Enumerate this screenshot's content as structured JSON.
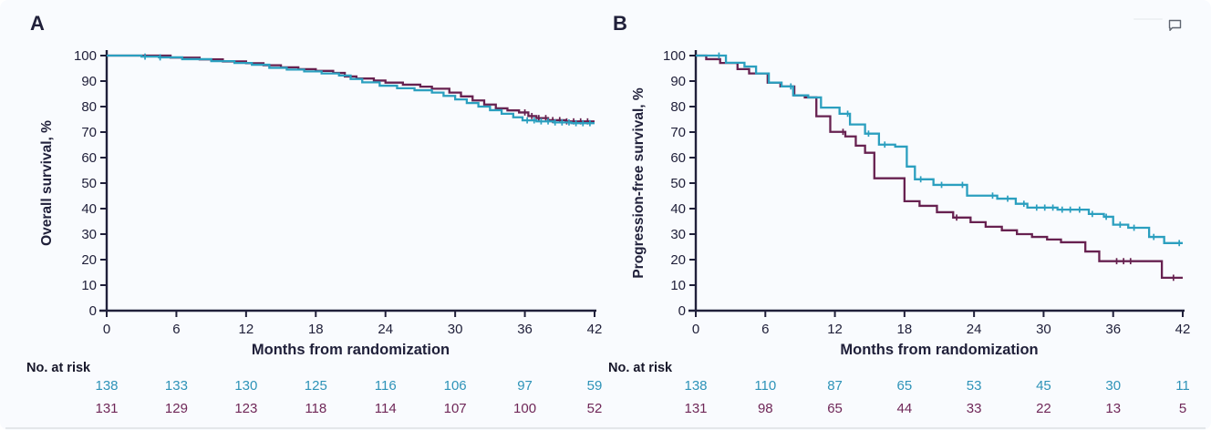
{
  "page": {
    "background_color": "#f9fbfe",
    "axis_text_color": "#20203a",
    "bottom_edge_color": "#e4e7ea"
  },
  "toolbar": {
    "comment_icon": "comment-bubble"
  },
  "chart_data": [
    {
      "type": "line",
      "subtype": "kaplan-meier-step",
      "panel_label": "A",
      "ylabel": "Overall survival, %",
      "xlabel": "Months from randomization",
      "xlim": [
        0,
        42
      ],
      "ylim": [
        0,
        100
      ],
      "xticks": [
        0,
        6,
        12,
        18,
        24,
        30,
        36,
        42
      ],
      "yticks": [
        0,
        10,
        20,
        30,
        40,
        50,
        60,
        70,
        80,
        90,
        100
      ],
      "grid": false,
      "legend_position": "none",
      "series": [
        {
          "name": "maroon-arm",
          "color": "#672150",
          "points": [
            [
              0,
              100
            ],
            [
              5.5,
              99.2
            ],
            [
              8,
              98.5
            ],
            [
              10,
              97.7
            ],
            [
              12,
              97
            ],
            [
              13.5,
              96.2
            ],
            [
              15,
              95.4
            ],
            [
              16.5,
              94.7
            ],
            [
              18,
              94
            ],
            [
              19.5,
              93.2
            ],
            [
              20.5,
              91.8
            ],
            [
              21.5,
              91
            ],
            [
              23,
              90.2
            ],
            [
              24,
              89.4
            ],
            [
              25.5,
              88.6
            ],
            [
              27,
              87.8
            ],
            [
              28,
              87
            ],
            [
              29.5,
              85.5
            ],
            [
              30.5,
              84
            ],
            [
              31.5,
              82.4
            ],
            [
              32.5,
              80.8
            ],
            [
              33.5,
              79.3
            ],
            [
              34.5,
              78.5
            ],
            [
              35.5,
              77.7
            ],
            [
              36.3,
              76.3
            ],
            [
              37,
              75.5
            ],
            [
              38,
              74.7
            ],
            [
              39.5,
              74.2
            ],
            [
              42,
              74.2
            ]
          ],
          "censor_months": [
            36,
            36.6,
            37.2,
            37.8,
            38.4,
            39,
            39.6,
            40.2,
            40.8,
            41.4
          ]
        },
        {
          "name": "teal-arm",
          "color": "#2b9fbf",
          "points": [
            [
              0,
              100
            ],
            [
              3,
              99.6
            ],
            [
              4.5,
              99.3
            ],
            [
              6.5,
              98.6
            ],
            [
              9,
              97.8
            ],
            [
              11,
              97.1
            ],
            [
              12.5,
              96.4
            ],
            [
              14,
              95.2
            ],
            [
              15.5,
              94.5
            ],
            [
              17,
              93.8
            ],
            [
              18.5,
              93
            ],
            [
              20,
              92.2
            ],
            [
              21,
              90.8
            ],
            [
              22,
              89.5
            ],
            [
              23.5,
              88.2
            ],
            [
              25,
              87.2
            ],
            [
              26.5,
              86.4
            ],
            [
              28,
              85.5
            ],
            [
              29,
              84.2
            ],
            [
              30,
              82.8
            ],
            [
              31,
              81.4
            ],
            [
              32,
              80
            ],
            [
              33,
              78.6
            ],
            [
              34,
              77.2
            ],
            [
              35,
              75.8
            ],
            [
              35.8,
              74.6
            ],
            [
              37,
              74.2
            ],
            [
              38.5,
              73.8
            ],
            [
              40,
              73.5
            ],
            [
              42,
              73.5
            ]
          ],
          "censor_months": [
            3.3,
            4.6,
            36.2,
            36.8,
            37.4,
            38,
            38.6,
            39.2,
            39.8,
            40.4,
            41,
            41.6
          ]
        }
      ],
      "risk_table": {
        "label": "No. at risk",
        "rows": [
          {
            "name": "teal-arm",
            "color": "#2e93b8",
            "values": [
              138,
              133,
              130,
              125,
              116,
              106,
              97,
              59
            ]
          },
          {
            "name": "maroon-arm",
            "color": "#6f2758",
            "values": [
              131,
              129,
              123,
              118,
              114,
              107,
              100,
              52
            ]
          }
        ]
      }
    },
    {
      "type": "line",
      "subtype": "kaplan-meier-step",
      "panel_label": "B",
      "ylabel": "Progression-free survival, %",
      "xlabel": "Months from randomization",
      "xlim": [
        0,
        42
      ],
      "ylim": [
        0,
        100
      ],
      "xticks": [
        0,
        6,
        12,
        18,
        24,
        30,
        36,
        42
      ],
      "yticks": [
        0,
        10,
        20,
        30,
        40,
        50,
        60,
        70,
        80,
        90,
        100
      ],
      "grid": false,
      "legend_position": "none",
      "series": [
        {
          "name": "maroon-arm",
          "color": "#672150",
          "points": [
            [
              0,
              100
            ],
            [
              0.9,
              98.6
            ],
            [
              2.1,
              97.1
            ],
            [
              3.6,
              94.7
            ],
            [
              4.6,
              93
            ],
            [
              6.2,
              89.4
            ],
            [
              7.3,
              87.9
            ],
            [
              8.5,
              84.4
            ],
            [
              9.4,
              83.6
            ],
            [
              10.4,
              76.2
            ],
            [
              11.6,
              70.1
            ],
            [
              12.9,
              68.3
            ],
            [
              13.8,
              64.7
            ],
            [
              14.6,
              61.9
            ],
            [
              15.4,
              51.9
            ],
            [
              18,
              42.9
            ],
            [
              19.3,
              41.1
            ],
            [
              20.8,
              38.6
            ],
            [
              22.2,
              36.5
            ],
            [
              23.7,
              34.7
            ],
            [
              25,
              32.9
            ],
            [
              26.4,
              31.5
            ],
            [
              27.7,
              30
            ],
            [
              29,
              28.9
            ],
            [
              30.3,
              27.9
            ],
            [
              31.5,
              26.8
            ],
            [
              33.6,
              23.2
            ],
            [
              34.8,
              19.4
            ],
            [
              40.2,
              12.9
            ],
            [
              42,
              12.9
            ]
          ],
          "censor_months": [
            12.7,
            22.5,
            36.3,
            36.9,
            37.5,
            41.2
          ]
        },
        {
          "name": "teal-arm",
          "color": "#2b9fbf",
          "points": [
            [
              0,
              100
            ],
            [
              2.6,
              97.2
            ],
            [
              4.2,
              95.7
            ],
            [
              5.2,
              93
            ],
            [
              6.3,
              89.4
            ],
            [
              7.4,
              87.9
            ],
            [
              8.4,
              84.4
            ],
            [
              9.7,
              83.6
            ],
            [
              10.8,
              79.6
            ],
            [
              12.4,
              77.2
            ],
            [
              13.3,
              73
            ],
            [
              14.6,
              69.4
            ],
            [
              15.8,
              65.1
            ],
            [
              17.2,
              64.3
            ],
            [
              18.2,
              56.5
            ],
            [
              18.9,
              51.5
            ],
            [
              20.5,
              49.3
            ],
            [
              23.4,
              45.1
            ],
            [
              26,
              43.9
            ],
            [
              27.6,
              41.9
            ],
            [
              28.6,
              40.4
            ],
            [
              31.2,
              39.6
            ],
            [
              33.9,
              37.9
            ],
            [
              35.2,
              36.8
            ],
            [
              36,
              33.7
            ],
            [
              37.3,
              32.5
            ],
            [
              39.1,
              28.9
            ],
            [
              40.4,
              26.5
            ],
            [
              42,
              26.5
            ]
          ],
          "censor_months": [
            2,
            8.2,
            13.1,
            14.9,
            16.3,
            19.4,
            21.2,
            23,
            25.6,
            26.9,
            28.3,
            29.4,
            30.1,
            30.8,
            31.6,
            32.3,
            33.1,
            34.2,
            35.4,
            36.6,
            37.8,
            39.5,
            41.7
          ]
        }
      ],
      "risk_table": {
        "label": "No. at risk",
        "rows": [
          {
            "name": "teal-arm",
            "color": "#2e93b8",
            "values": [
              138,
              110,
              87,
              65,
              53,
              45,
              30,
              11
            ]
          },
          {
            "name": "maroon-arm",
            "color": "#6f2758",
            "values": [
              131,
              98,
              65,
              44,
              33,
              22,
              13,
              5
            ]
          }
        ]
      }
    }
  ]
}
